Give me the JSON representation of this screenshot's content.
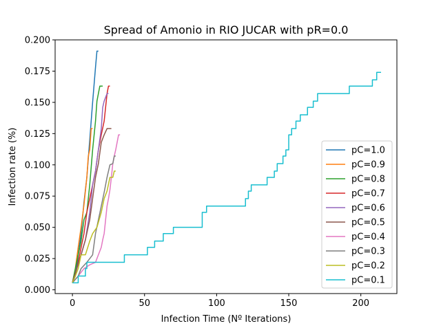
{
  "chart_data": {
    "type": "line",
    "title": "Spread of Amonio in RIO JUCAR with pR=0.0",
    "xlabel": "Infection Time (Nº Iterations)",
    "ylabel": "Infection rate (%)",
    "xlim": [
      -12,
      225
    ],
    "ylim": [
      -0.003,
      0.2
    ],
    "xticks": [
      0,
      50,
      100,
      150,
      200
    ],
    "yticks": [
      0.0,
      0.025,
      0.05,
      0.075,
      0.1,
      0.125,
      0.15,
      0.175,
      0.2
    ],
    "ytick_labels": [
      "0.000",
      "0.025",
      "0.050",
      "0.075",
      "0.100",
      "0.125",
      "0.150",
      "0.175",
      "0.200"
    ],
    "grid": false,
    "legend": "center-right",
    "series": [
      {
        "name": "pC=1.0",
        "color": "#1f77b4",
        "points": [
          [
            0,
            0.0056
          ],
          [
            2,
            0.011
          ],
          [
            4,
            0.028
          ],
          [
            6,
            0.045
          ],
          [
            8,
            0.07
          ],
          [
            10,
            0.09
          ],
          [
            12,
            0.12
          ],
          [
            14,
            0.15
          ],
          [
            16,
            0.178
          ],
          [
            17,
            0.191
          ],
          [
            18,
            0.191
          ]
        ]
      },
      {
        "name": "pC=0.9",
        "color": "#ff7f0e",
        "points": [
          [
            0,
            0.0056
          ],
          [
            2,
            0.017
          ],
          [
            4,
            0.034
          ],
          [
            6,
            0.05
          ],
          [
            8,
            0.068
          ],
          [
            10,
            0.09
          ],
          [
            11,
            0.107
          ],
          [
            12,
            0.112
          ],
          [
            13,
            0.129
          ],
          [
            14,
            0.129
          ]
        ]
      },
      {
        "name": "pC=0.8",
        "color": "#2ca02c",
        "points": [
          [
            0,
            0.0056
          ],
          [
            2,
            0.017
          ],
          [
            4,
            0.028
          ],
          [
            6,
            0.039
          ],
          [
            8,
            0.056
          ],
          [
            10,
            0.062
          ],
          [
            12,
            0.084
          ],
          [
            14,
            0.112
          ],
          [
            16,
            0.135
          ],
          [
            17,
            0.151
          ],
          [
            18,
            0.157
          ],
          [
            19,
            0.163
          ],
          [
            21,
            0.163
          ]
        ]
      },
      {
        "name": "pC=0.7",
        "color": "#d62728",
        "points": [
          [
            0,
            0.0056
          ],
          [
            3,
            0.017
          ],
          [
            5,
            0.028
          ],
          [
            8,
            0.045
          ],
          [
            10,
            0.062
          ],
          [
            12,
            0.073
          ],
          [
            14,
            0.084
          ],
          [
            16,
            0.095
          ],
          [
            18,
            0.112
          ],
          [
            20,
            0.124
          ],
          [
            22,
            0.135
          ],
          [
            24,
            0.157
          ],
          [
            25,
            0.163
          ],
          [
            26,
            0.163
          ]
        ]
      },
      {
        "name": "pC=0.6",
        "color": "#9467bd",
        "points": [
          [
            0,
            0.0056
          ],
          [
            3,
            0.017
          ],
          [
            6,
            0.028
          ],
          [
            9,
            0.04
          ],
          [
            12,
            0.062
          ],
          [
            14,
            0.084
          ],
          [
            16,
            0.095
          ],
          [
            18,
            0.112
          ],
          [
            20,
            0.129
          ],
          [
            21,
            0.146
          ],
          [
            22,
            0.151
          ],
          [
            24,
            0.157
          ],
          [
            25,
            0.157
          ]
        ]
      },
      {
        "name": "pC=0.5",
        "color": "#8c564b",
        "points": [
          [
            0,
            0.0056
          ],
          [
            3,
            0.017
          ],
          [
            6,
            0.028
          ],
          [
            9,
            0.04
          ],
          [
            12,
            0.056
          ],
          [
            14,
            0.073
          ],
          [
            16,
            0.09
          ],
          [
            18,
            0.101
          ],
          [
            20,
            0.118
          ],
          [
            22,
            0.124
          ],
          [
            24,
            0.129
          ],
          [
            27,
            0.129
          ]
        ]
      },
      {
        "name": "pC=0.4",
        "color": "#e377c2",
        "points": [
          [
            0,
            0.0056
          ],
          [
            4,
            0.011
          ],
          [
            8,
            0.017
          ],
          [
            12,
            0.02
          ],
          [
            16,
            0.022
          ],
          [
            18,
            0.028
          ],
          [
            20,
            0.034
          ],
          [
            21,
            0.04
          ],
          [
            22,
            0.045
          ],
          [
            23,
            0.056
          ],
          [
            24,
            0.067
          ],
          [
            25,
            0.073
          ],
          [
            26,
            0.08
          ],
          [
            27,
            0.09
          ],
          [
            28,
            0.101
          ],
          [
            29,
            0.107
          ],
          [
            30,
            0.112
          ],
          [
            31,
            0.118
          ],
          [
            32,
            0.124
          ],
          [
            33,
            0.124
          ]
        ]
      },
      {
        "name": "pC=0.3",
        "color": "#7f7f7f",
        "points": [
          [
            0,
            0.0056
          ],
          [
            4,
            0.011
          ],
          [
            6,
            0.017
          ],
          [
            10,
            0.022
          ],
          [
            14,
            0.028
          ],
          [
            16,
            0.045
          ],
          [
            18,
            0.056
          ],
          [
            20,
            0.067
          ],
          [
            22,
            0.078
          ],
          [
            24,
            0.09
          ],
          [
            26,
            0.1
          ],
          [
            28,
            0.101
          ],
          [
            29,
            0.107
          ],
          [
            30,
            0.107
          ]
        ]
      },
      {
        "name": "pC=0.2",
        "color": "#bcbd22",
        "points": [
          [
            0,
            0.0056
          ],
          [
            2,
            0.011
          ],
          [
            4,
            0.017
          ],
          [
            6,
            0.028
          ],
          [
            9,
            0.028
          ],
          [
            12,
            0.039
          ],
          [
            14,
            0.045
          ],
          [
            17,
            0.05
          ],
          [
            20,
            0.062
          ],
          [
            22,
            0.073
          ],
          [
            24,
            0.079
          ],
          [
            26,
            0.09
          ],
          [
            28,
            0.09
          ],
          [
            29,
            0.095
          ],
          [
            30,
            0.095
          ]
        ]
      },
      {
        "name": "pC=0.1",
        "color": "#17becf",
        "points": [
          [
            0,
            0.0056
          ],
          [
            4,
            0.0056
          ],
          [
            4,
            0.011
          ],
          [
            9,
            0.011
          ],
          [
            9,
            0.017
          ],
          [
            10,
            0.017
          ],
          [
            10,
            0.022
          ],
          [
            36,
            0.022
          ],
          [
            36,
            0.028
          ],
          [
            52,
            0.028
          ],
          [
            52,
            0.034
          ],
          [
            57,
            0.034
          ],
          [
            57,
            0.039
          ],
          [
            63,
            0.039
          ],
          [
            63,
            0.045
          ],
          [
            70,
            0.045
          ],
          [
            70,
            0.05
          ],
          [
            90,
            0.05
          ],
          [
            90,
            0.062
          ],
          [
            93,
            0.062
          ],
          [
            93,
            0.067
          ],
          [
            120,
            0.067
          ],
          [
            120,
            0.073
          ],
          [
            122,
            0.073
          ],
          [
            122,
            0.079
          ],
          [
            124,
            0.079
          ],
          [
            124,
            0.084
          ],
          [
            135,
            0.084
          ],
          [
            135,
            0.09
          ],
          [
            140,
            0.09
          ],
          [
            140,
            0.095
          ],
          [
            142,
            0.095
          ],
          [
            142,
            0.101
          ],
          [
            146,
            0.101
          ],
          [
            146,
            0.107
          ],
          [
            148,
            0.107
          ],
          [
            148,
            0.112
          ],
          [
            150,
            0.112
          ],
          [
            150,
            0.124
          ],
          [
            152,
            0.124
          ],
          [
            152,
            0.129
          ],
          [
            155,
            0.129
          ],
          [
            155,
            0.135
          ],
          [
            158,
            0.135
          ],
          [
            158,
            0.14
          ],
          [
            163,
            0.14
          ],
          [
            163,
            0.146
          ],
          [
            167,
            0.146
          ],
          [
            167,
            0.151
          ],
          [
            170,
            0.151
          ],
          [
            170,
            0.157
          ],
          [
            192,
            0.157
          ],
          [
            192,
            0.163
          ],
          [
            208,
            0.163
          ],
          [
            208,
            0.168
          ],
          [
            211,
            0.168
          ],
          [
            211,
            0.174
          ],
          [
            214,
            0.174
          ]
        ]
      }
    ]
  }
}
